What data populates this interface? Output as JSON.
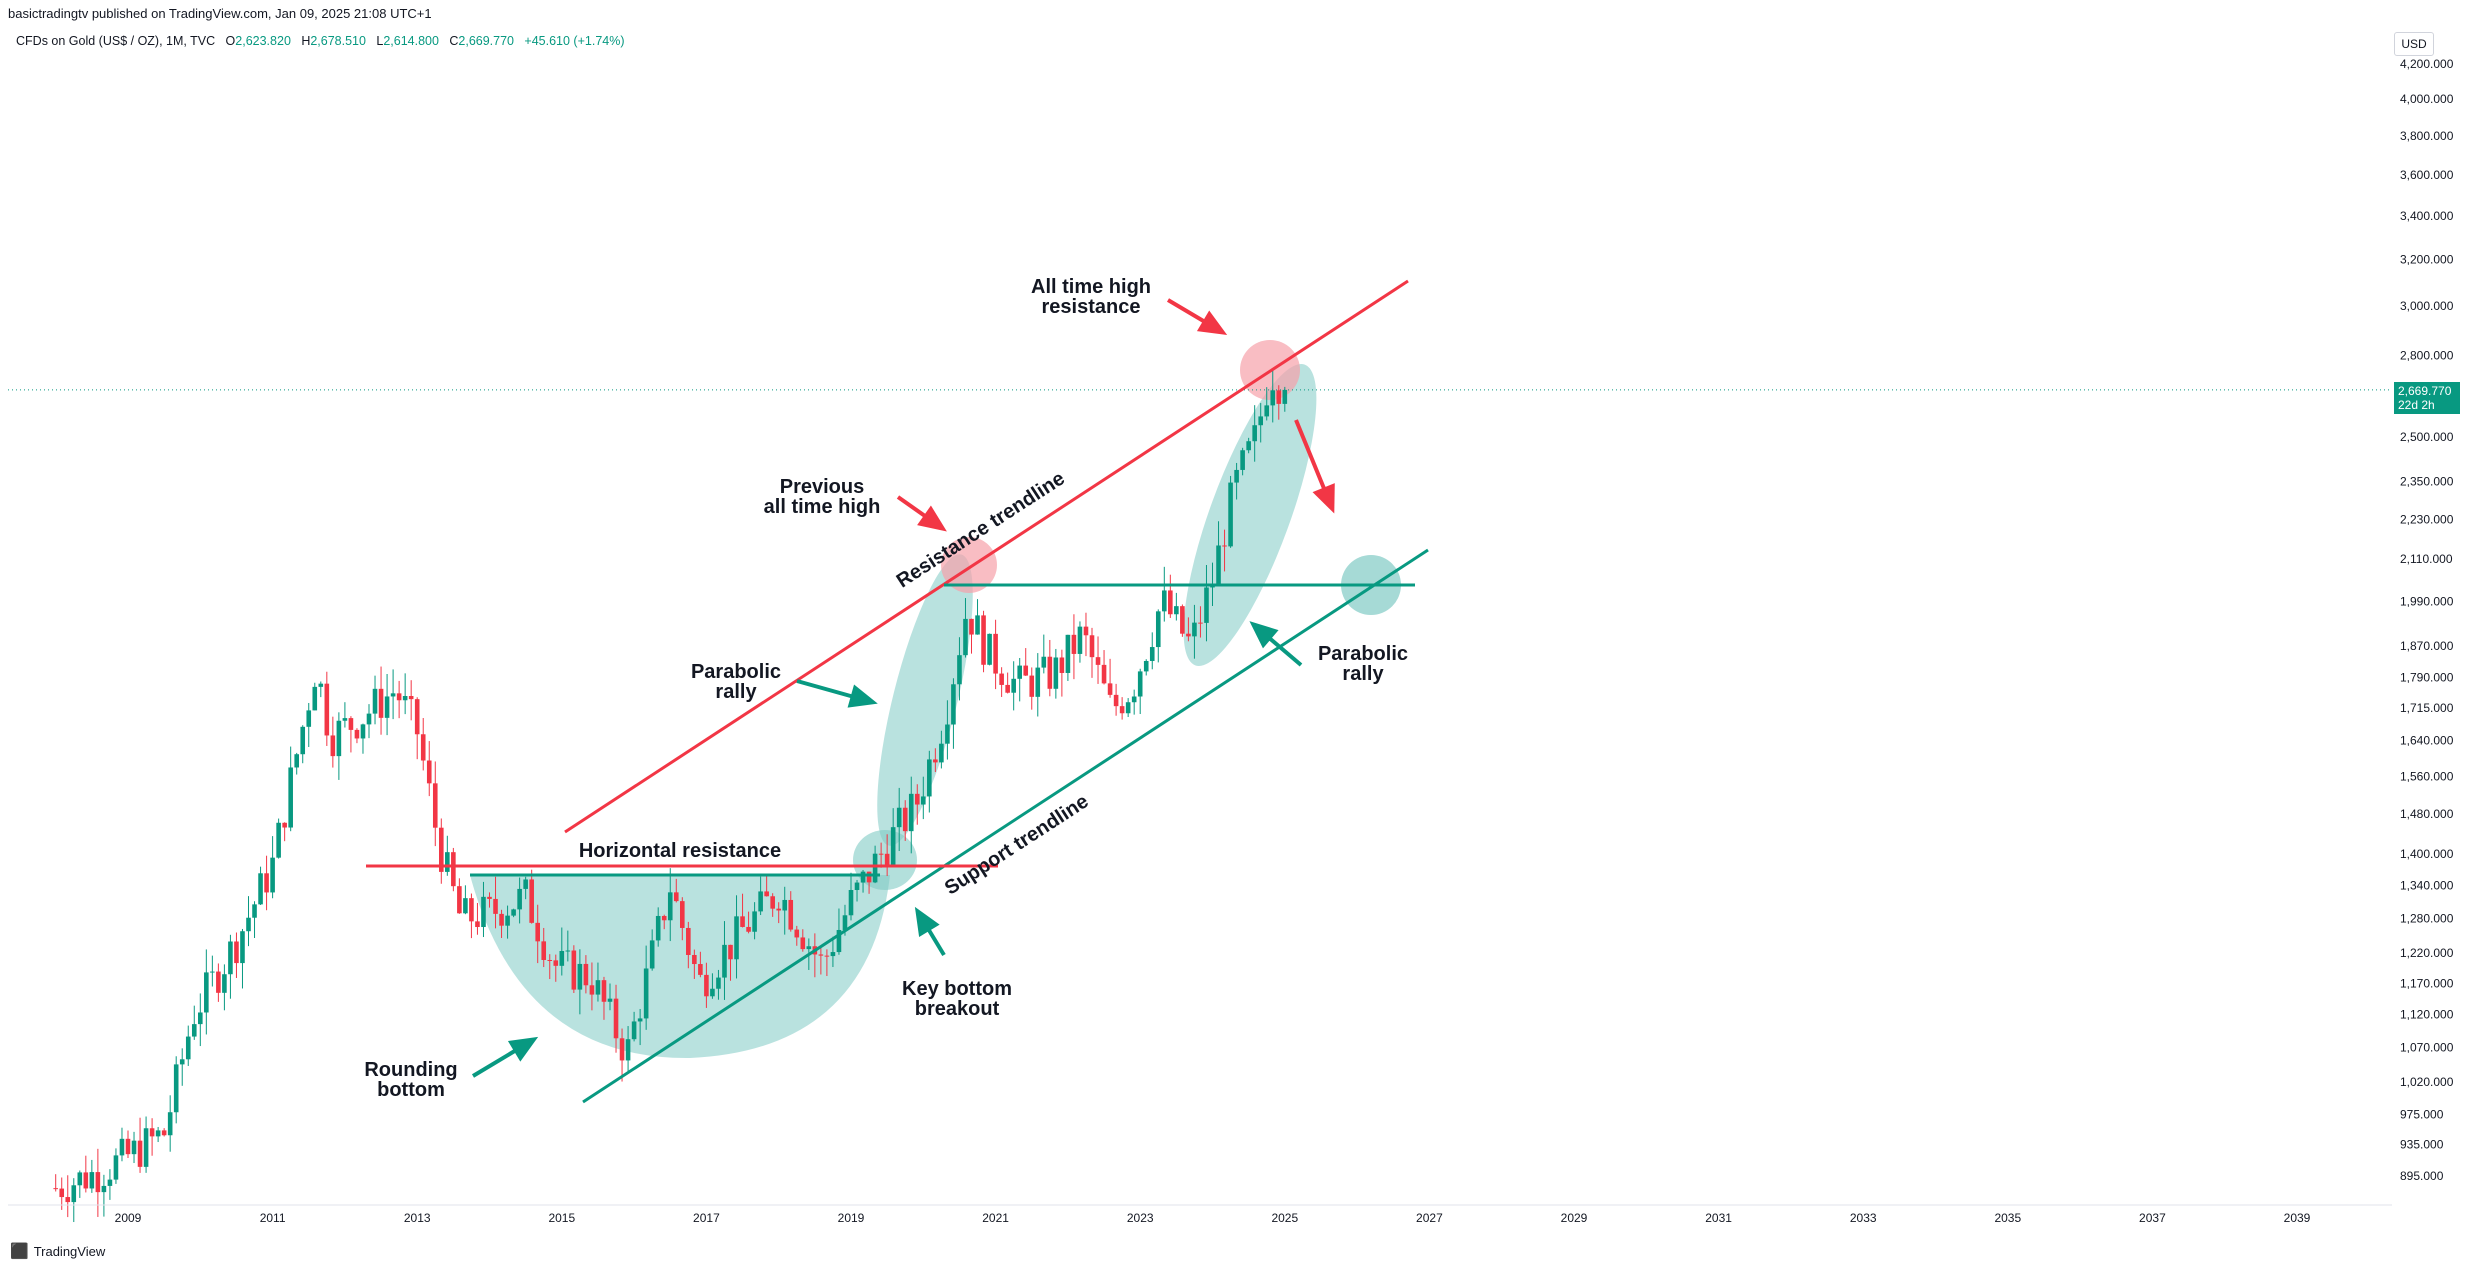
{
  "header": {
    "published": "basictradingtv published on TradingView.com, Jan 09, 2025 21:08 UTC+1",
    "symbol": "CFDs on Gold (US$ / OZ), 1M, TVC",
    "o_label": "O",
    "o_value": "2,623.820",
    "h_label": "H",
    "h_value": "2,678.510",
    "l_label": "L",
    "l_value": "2,614.800",
    "c_label": "C",
    "c_value": "2,669.770",
    "change": "+45.610 (+1.74%)"
  },
  "axis": {
    "currency": "USD"
  },
  "price_tag": {
    "price": "2,669.770",
    "countdown": "22d 2h"
  },
  "footer": {
    "brand": "TradingView"
  },
  "colors": {
    "up": "#089981",
    "down": "#f23645",
    "resistance": "#f23645",
    "support": "#089981",
    "highlight_green": "#80cbc4",
    "highlight_red": "#f7a1aa"
  },
  "chart_data": {
    "type": "candlestick",
    "y_scale": "log",
    "y_ticks": [
      "895.000",
      "935.000",
      "975.000",
      "1,020.000",
      "1,070.000",
      "1,120.000",
      "1,170.000",
      "1,220.000",
      "1,280.000",
      "1,340.000",
      "1,400.000",
      "1,480.000",
      "1,560.000",
      "1,640.000",
      "1,715.000",
      "1,790.000",
      "1,870.000",
      "1,990.000",
      "2,110.000",
      "2,230.000",
      "2,350.000",
      "2,500.000",
      "2,800.000",
      "3,000.000",
      "3,200.000",
      "3,400.000",
      "3,600.000",
      "3,800.000",
      "4,000.000",
      "4,200.000"
    ],
    "x_ticks": [
      "2009",
      "2011",
      "2013",
      "2015",
      "2017",
      "2019",
      "2021",
      "2023",
      "2025",
      "2027",
      "2029",
      "2031",
      "2033",
      "2035",
      "2037",
      "2039"
    ],
    "xlim": [
      2007.9,
      2041.0
    ],
    "ylim": [
      850,
      4300
    ],
    "yearly_path": [
      [
        2008.0,
        880
      ],
      [
        2008.6,
        900
      ],
      [
        2009.0,
        920
      ],
      [
        2009.5,
        950
      ],
      [
        2009.9,
        1120
      ],
      [
        2010.5,
        1240
      ],
      [
        2011.0,
        1380
      ],
      [
        2011.6,
        1820
      ],
      [
        2011.8,
        1650
      ],
      [
        2012.2,
        1690
      ],
      [
        2012.7,
        1760
      ],
      [
        2013.0,
        1660
      ],
      [
        2013.3,
        1420
      ],
      [
        2013.6,
        1280
      ],
      [
        2014.0,
        1290
      ],
      [
        2014.5,
        1320
      ],
      [
        2014.9,
        1200
      ],
      [
        2015.4,
        1180
      ],
      [
        2015.9,
        1060
      ],
      [
        2016.5,
        1340
      ],
      [
        2016.9,
        1170
      ],
      [
        2017.5,
        1260
      ],
      [
        2018.0,
        1330
      ],
      [
        2018.6,
        1200
      ],
      [
        2019.0,
        1310
      ],
      [
        2019.5,
        1420
      ],
      [
        2019.9,
        1500
      ],
      [
        2020.3,
        1700
      ],
      [
        2020.6,
        1970
      ],
      [
        2020.9,
        1850
      ],
      [
        2021.3,
        1770
      ],
      [
        2021.8,
        1800
      ],
      [
        2022.2,
        1900
      ],
      [
        2022.6,
        1710
      ],
      [
        2022.9,
        1770
      ],
      [
        2023.3,
        1990
      ],
      [
        2023.7,
        1870
      ],
      [
        2024.0,
        2050
      ],
      [
        2024.3,
        2330
      ],
      [
        2024.6,
        2500
      ],
      [
        2024.8,
        2740
      ],
      [
        2025.0,
        2669.77
      ]
    ],
    "annotations": [
      {
        "text": "All time high",
        "text2": "resistance"
      },
      {
        "text": "Previous",
        "text2": "all time high"
      },
      {
        "text": "Resistance trendline"
      },
      {
        "text": "Parabolic",
        "text2": "rally"
      },
      {
        "text": "Parabolic",
        "text2": "rally"
      },
      {
        "text": "Horizontal resistance"
      },
      {
        "text": "Support trendline"
      },
      {
        "text": "Key bottom",
        "text2": "breakout"
      },
      {
        "text": "Rounding",
        "text2": "bottom"
      }
    ]
  }
}
